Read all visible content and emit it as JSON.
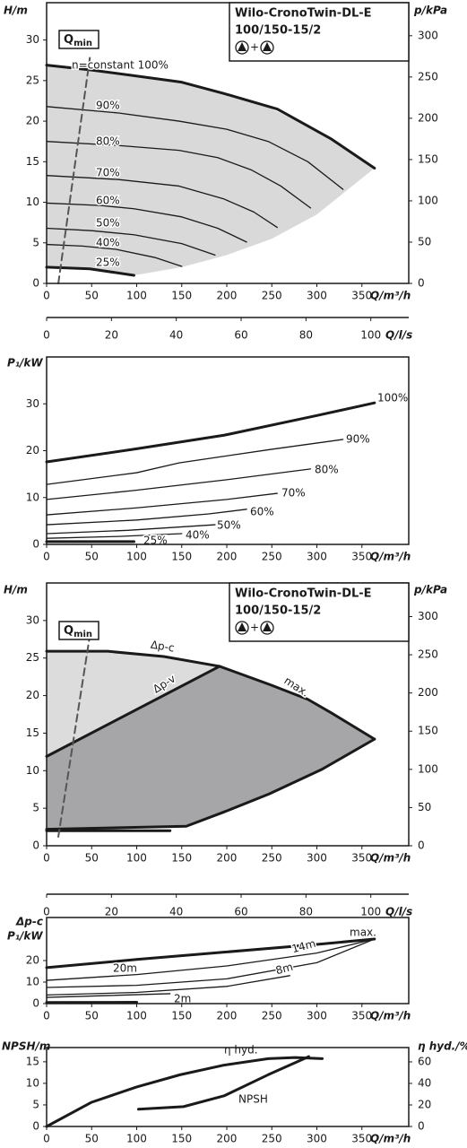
{
  "chart_data": [
    {
      "type": "line",
      "title": "Wilo-CronoTwin-DL-E",
      "subtitle": "100/150-15/2",
      "pump_symbol": "+",
      "qmin": {
        "text": "Q",
        "sub": "min"
      },
      "ylabel": "H/m",
      "y2label": "p/kPa",
      "xlabel": "Q/m³/h",
      "x2label": "Q/l/s",
      "xlim": [
        0,
        402
      ],
      "xticks": [
        0,
        50,
        100,
        150,
        200,
        250,
        300,
        350
      ],
      "ylim": [
        0,
        34.6
      ],
      "yticks": [
        0,
        5,
        10,
        15,
        20,
        25,
        30
      ],
      "y2lim": [
        0,
        340
      ],
      "y2ticks": [
        0,
        50,
        100,
        150,
        200,
        250,
        300
      ],
      "x2lim": [
        0,
        111.7
      ],
      "x2ticks": [
        0,
        20,
        40,
        60,
        80,
        100
      ],
      "regions": [
        {
          "color": "#d9d9d9",
          "x": [
            0,
            50,
            100,
            150,
            200,
            250,
            300,
            364,
            300,
            250,
            200,
            150,
            97,
            50,
            0
          ],
          "y": [
            27,
            26.3,
            25.6,
            24.9,
            23.4,
            21.5,
            18.9,
            14.2,
            8.5,
            5.5,
            3.5,
            2.0,
            1.0,
            1.8,
            2.0
          ]
        }
      ],
      "series": [
        {
          "name": "n=constant 100%",
          "color": "#1a1a1a",
          "style": "bold",
          "x": [
            0,
            50,
            97,
            150,
            197,
            256,
            316,
            364
          ],
          "values": [
            26.9,
            26.3,
            25.6,
            24.8,
            23.4,
            21.5,
            17.8,
            14.2
          ]
        },
        {
          "name": "90%",
          "color": "#1a1a1a",
          "style": "thin",
          "x": [
            0,
            80,
            147,
            200,
            246,
            290,
            329
          ],
          "values": [
            21.8,
            21.0,
            20.0,
            19.0,
            17.5,
            15.0,
            11.6
          ]
        },
        {
          "name": "80%",
          "color": "#1a1a1a",
          "style": "thin",
          "x": [
            0,
            80,
            147,
            190,
            227,
            260,
            293
          ],
          "values": [
            17.5,
            17.0,
            16.4,
            15.5,
            14.0,
            12.0,
            9.3
          ]
        },
        {
          "name": "70%",
          "color": "#1a1a1a",
          "style": "thin",
          "x": [
            0,
            80,
            147,
            197,
            230,
            256
          ],
          "values": [
            13.3,
            12.8,
            12.0,
            10.4,
            8.8,
            6.9
          ]
        },
        {
          "name": "60%",
          "color": "#1a1a1a",
          "style": "thin",
          "x": [
            0,
            60,
            97,
            150,
            190,
            222
          ],
          "values": [
            9.9,
            9.6,
            9.2,
            8.2,
            6.8,
            5.1
          ]
        },
        {
          "name": "50%",
          "color": "#1a1a1a",
          "style": "thin",
          "x": [
            0,
            50,
            97,
            150,
            187
          ],
          "values": [
            6.8,
            6.5,
            6.0,
            4.9,
            3.5
          ]
        },
        {
          "name": "40%",
          "color": "#1a1a1a",
          "style": "thin",
          "x": [
            0,
            40,
            77,
            120,
            150
          ],
          "values": [
            4.8,
            4.6,
            4.2,
            3.2,
            2.1
          ]
        },
        {
          "name": "25%",
          "color": "#1a1a1a",
          "style": "bold",
          "x": [
            0,
            48,
            97
          ],
          "values": [
            2.0,
            1.8,
            1.0
          ]
        },
        {
          "color": "#555555",
          "style": "dashed",
          "x": [
            13,
            48
          ],
          "values": [
            0,
            27.8
          ]
        }
      ]
    },
    {
      "type": "line",
      "ylabel": "P₁/kW",
      "xlabel": "Q/m³/h",
      "xlim": [
        0,
        402
      ],
      "xticks": [
        0,
        50,
        100,
        150,
        200,
        250,
        300,
        350
      ],
      "ylim": [
        0,
        40
      ],
      "yticks": [
        0,
        10,
        20,
        30
      ],
      "series": [
        {
          "name": "100%",
          "color": "#1a1a1a",
          "style": "bold",
          "x": [
            0,
            100,
            197,
            300,
            364
          ],
          "values": [
            17.6,
            20.4,
            23.3,
            27.5,
            30.2
          ]
        },
        {
          "name": "90%",
          "color": "#1a1a1a",
          "style": "thin",
          "x": [
            0,
            100,
            147,
            250,
            329
          ],
          "values": [
            12.8,
            15.3,
            17.4,
            20.3,
            22.4
          ]
        },
        {
          "name": "80%",
          "color": "#1a1a1a",
          "style": "thin",
          "x": [
            0,
            97,
            200,
            293
          ],
          "values": [
            9.6,
            11.5,
            13.8,
            16.1
          ]
        },
        {
          "name": "70%",
          "color": "#1a1a1a",
          "style": "thin",
          "x": [
            0,
            100,
            200,
            256
          ],
          "values": [
            6.3,
            7.8,
            9.6,
            10.9
          ]
        },
        {
          "name": "60%",
          "color": "#1a1a1a",
          "style": "thin",
          "x": [
            0,
            100,
            180,
            222
          ],
          "values": [
            4.2,
            5.2,
            6.5,
            7.5
          ]
        },
        {
          "name": "50%",
          "color": "#1a1a1a",
          "style": "thin",
          "x": [
            0,
            90,
            187
          ],
          "values": [
            2.3,
            3.0,
            4.2
          ]
        },
        {
          "name": "40%",
          "color": "#1a1a1a",
          "style": "thin",
          "x": [
            0,
            80,
            150
          ],
          "values": [
            1.3,
            1.7,
            2.3
          ]
        },
        {
          "name": "25%",
          "color": "#1a1a1a",
          "style": "bold",
          "x": [
            0,
            97
          ],
          "values": [
            0.6,
            0.6
          ]
        }
      ]
    },
    {
      "type": "line",
      "title": "Wilo-CronoTwin-DL-E",
      "subtitle": "100/150-15/2",
      "pump_symbol": "+",
      "qmin": {
        "text": "Q",
        "sub": "min"
      },
      "ylabel": "H/m",
      "y2label": "p/kPa",
      "xlabel": "Q/m³/h",
      "x2label": "Q/l/s",
      "xlim": [
        0,
        402
      ],
      "xticks": [
        0,
        50,
        100,
        150,
        200,
        250,
        300,
        350
      ],
      "ylim": [
        0,
        35
      ],
      "yticks": [
        0,
        5,
        10,
        15,
        20,
        25,
        30
      ],
      "y2lim": [
        0,
        344
      ],
      "y2ticks": [
        0,
        50,
        100,
        150,
        200,
        250,
        300
      ],
      "x2lim": [
        0,
        111.7
      ],
      "x2ticks": [
        0,
        20,
        40,
        60,
        80,
        100
      ],
      "regions": [
        {
          "color": "#dcdcdc",
          "x": [
            0,
            68,
            130,
            192,
            0
          ],
          "y": [
            25.9,
            25.9,
            25.2,
            23.9,
            11.9
          ]
        },
        {
          "color": "#a6a6a8",
          "x": [
            0,
            192,
            247,
            290,
            316,
            364,
            306,
            247,
            197,
            155,
            0
          ],
          "y": [
            11.9,
            23.9,
            21.5,
            19.5,
            17.7,
            14.2,
            10.2,
            6.9,
            4.5,
            2.6,
            2.2
          ]
        }
      ],
      "series": [
        {
          "name": "Δp-c",
          "color": "#1a1a1a",
          "style": "bold",
          "x": [
            0,
            68,
            130,
            192
          ],
          "values": [
            25.9,
            25.9,
            25.2,
            23.9
          ]
        },
        {
          "name": "max.",
          "color": "#1a1a1a",
          "style": "bold",
          "x": [
            192,
            247,
            290,
            316,
            364
          ],
          "values": [
            23.9,
            21.5,
            19.5,
            17.7,
            14.2
          ]
        },
        {
          "name": "Δp-v",
          "color": "#1a1a1a",
          "style": "bold",
          "x": [
            0,
            192
          ],
          "values": [
            11.9,
            23.9
          ]
        },
        {
          "color": "#1a1a1a",
          "style": "bold",
          "x": [
            364,
            306,
            247,
            197,
            155,
            0
          ],
          "values": [
            14.2,
            10.2,
            6.9,
            4.5,
            2.6,
            2.2
          ]
        },
        {
          "color": "#1a1a1a",
          "style": "bold",
          "x": [
            0,
            137
          ],
          "values": [
            2.0,
            2.0
          ]
        },
        {
          "color": "#555555",
          "style": "dashed",
          "x": [
            13,
            48
          ],
          "values": [
            1.2,
            28
          ]
        }
      ]
    },
    {
      "type": "line",
      "ylabel_top": "Δp-c",
      "ylabel": "P₁/kW",
      "xlabel": "Q/m³/h",
      "xlim": [
        0,
        402
      ],
      "xticks": [
        0,
        50,
        100,
        150,
        200,
        250,
        300,
        350
      ],
      "ylim": [
        0,
        40
      ],
      "yticks": [
        0,
        10,
        20
      ],
      "series": [
        {
          "name": "max.",
          "color": "#1a1a1a",
          "style": "bold",
          "x": [
            0,
            100,
            200,
            300,
            364
          ],
          "values": [
            16.7,
            20.5,
            24.0,
            27.5,
            30.0
          ]
        },
        {
          "name": "20m",
          "color": "#1a1a1a",
          "style": "thin",
          "x": [
            0,
            100,
            200,
            300,
            364
          ],
          "values": [
            10.8,
            13.5,
            17.5,
            23.5,
            30.0
          ]
        },
        {
          "name": "14m",
          "color": "#1a1a1a",
          "style": "thin",
          "x": [
            0,
            100,
            200,
            300,
            364
          ],
          "values": [
            7.5,
            8.5,
            11.5,
            19.0,
            30.0
          ]
        },
        {
          "name": "8m",
          "color": "#1a1a1a",
          "style": "thin",
          "x": [
            0,
            100,
            200,
            270
          ],
          "values": [
            4.0,
            5.2,
            8.0,
            13.0
          ]
        },
        {
          "name": "2m",
          "color": "#1a1a1a",
          "style": "thin",
          "x": [
            0,
            137
          ],
          "values": [
            2.9,
            4.6
          ]
        },
        {
          "color": "#1a1a1a",
          "style": "bold",
          "x": [
            0,
            100
          ],
          "values": [
            0.5,
            0.6
          ]
        }
      ]
    },
    {
      "type": "line",
      "ylabel": "NPSH/m",
      "y2label": "η hyd./%",
      "xlabel": "Q/m³/h",
      "xlim": [
        0,
        402
      ],
      "xticks": [
        0,
        50,
        100,
        150,
        200,
        250,
        300,
        350
      ],
      "ylim": [
        0,
        18.3
      ],
      "yticks": [
        0,
        5,
        10,
        15
      ],
      "y2lim": [
        0,
        73.3
      ],
      "y2ticks": [
        0,
        20,
        40,
        60
      ],
      "series": [
        {
          "name": "η hyd.",
          "axis": "y2",
          "color": "#1a1a1a",
          "style": "bold",
          "x": [
            0,
            50,
            100,
            148,
            197,
            246,
            276,
            306
          ],
          "values": [
            0,
            22.5,
            36.7,
            48,
            57,
            63,
            64,
            63
          ]
        },
        {
          "name": "NPSH",
          "color": "#1a1a1a",
          "style": "bold",
          "x": [
            102,
            152,
            197,
            246,
            291
          ],
          "values": [
            4.0,
            4.6,
            7.1,
            12.0,
            16.2
          ]
        }
      ]
    }
  ]
}
